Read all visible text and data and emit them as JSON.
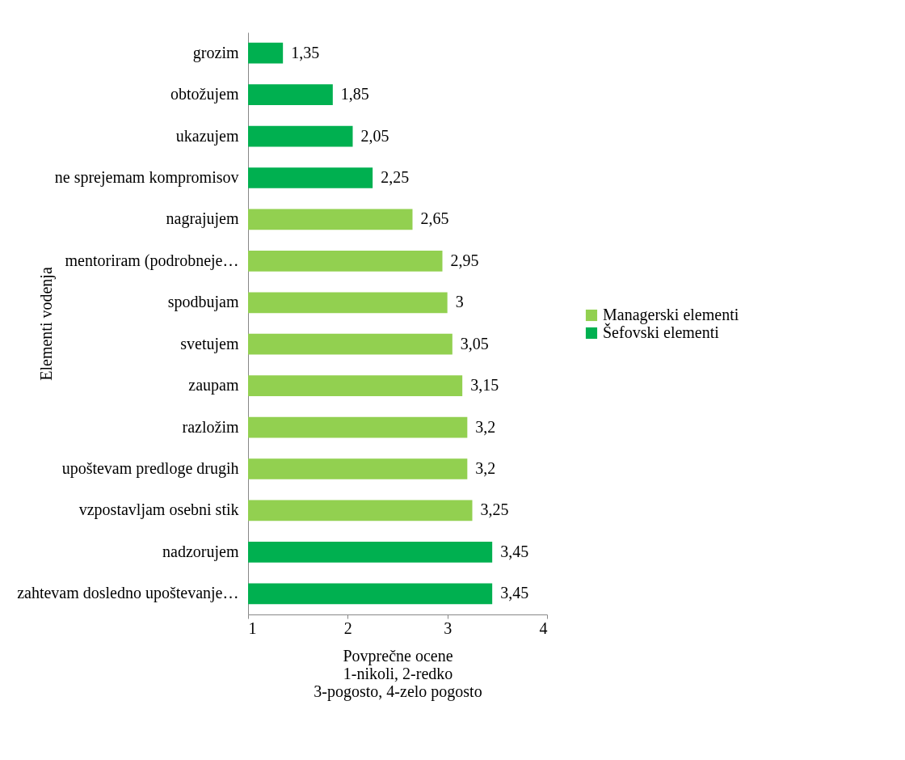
{
  "chart_data": {
    "type": "bar",
    "orientation": "horizontal",
    "ylabel": "Elementi vodenja",
    "xlabel": "Povprečne ocene\n1-nikoli, 2-redko\n3-pogosto, 4-zelo pogosto",
    "categories": [
      "grozim",
      "obtožujem",
      "ukazujem",
      "ne sprejemam kompromisov",
      "nagrajujem",
      "mentoriram (podrobneje…",
      "spodbujam",
      "svetujem",
      "zaupam",
      "razložim",
      "upoštevam predloge drugih",
      "vzpostavljam osebni stik",
      "nadzorujem",
      "zahtevam dosledno upoštevanje…"
    ],
    "series": [
      {
        "name": "Managerski elementi",
        "color": "#92d050",
        "values": [
          null,
          null,
          null,
          null,
          2.65,
          2.95,
          3,
          3.05,
          3.15,
          3.2,
          3.2,
          3.25,
          null,
          null
        ],
        "value_labels": [
          null,
          null,
          null,
          null,
          "2,65",
          "2,95",
          "3",
          "3,05",
          "3,15",
          "3,2",
          "3,2",
          "3,25",
          null,
          null
        ]
      },
      {
        "name": "Šefovski elementi",
        "color": "#00b050",
        "values": [
          1.35,
          1.85,
          2.05,
          2.25,
          null,
          null,
          null,
          null,
          null,
          null,
          null,
          null,
          3.45,
          3.45
        ],
        "value_labels": [
          "1,35",
          "1,85",
          "2,05",
          "2,25",
          null,
          null,
          null,
          null,
          null,
          null,
          null,
          null,
          "3,45",
          "3,45"
        ]
      }
    ],
    "xlim": [
      1,
      4
    ],
    "xticks": [
      1,
      2,
      3,
      4
    ],
    "grid": false,
    "legend": "right"
  }
}
